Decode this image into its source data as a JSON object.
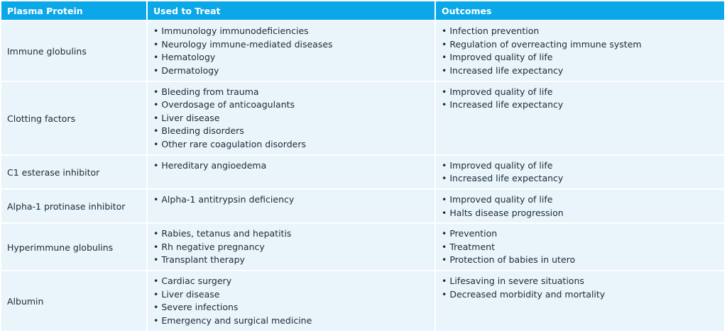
{
  "headers": {
    "protein": "Plasma Protein",
    "treat": "Used to Treat",
    "outcomes": "Outcomes"
  },
  "rows": [
    {
      "protein": "Immune globulins",
      "treat": [
        "Immunology immunodeficiencies",
        "Neurology immune-mediated diseases",
        "Hematology",
        "Dermatology"
      ],
      "outcomes": [
        "Infection prevention",
        "Regulation of overreacting immune system",
        "Improved quality of life",
        "Increased life expectancy"
      ]
    },
    {
      "protein": "Clotting factors",
      "treat": [
        "Bleeding from trauma",
        "Overdosage of anticoagulants",
        "Liver disease",
        "Bleeding disorders",
        "Other rare coagulation disorders"
      ],
      "outcomes": [
        "Improved quality of life",
        "Increased life expectancy"
      ]
    },
    {
      "protein": "C1 esterase inhibitor",
      "treat": [
        "Hereditary angioedema"
      ],
      "outcomes": [
        "Improved quality of life",
        "Increased life expectancy"
      ]
    },
    {
      "protein": "Alpha-1 protinase inhibitor",
      "treat": [
        "Alpha-1 antitrypsin deficiency"
      ],
      "outcomes": [
        "Improved quality of life",
        "Halts disease progression"
      ]
    },
    {
      "protein": "Hyperimmune globulins",
      "treat": [
        "Rabies, tetanus and hepatitis",
        "Rh negative pregnancy",
        "Transplant therapy"
      ],
      "outcomes": [
        "Prevention",
        "Treatment",
        "Protection of babies in utero"
      ]
    },
    {
      "protein": "Albumin",
      "treat": [
        "Cardiac surgery",
        "Liver disease",
        "Severe infections",
        "Emergency and surgical medicine"
      ],
      "outcomes": [
        "Lifesaving in severe situations",
        "Decreased morbidity and mortality"
      ]
    }
  ]
}
